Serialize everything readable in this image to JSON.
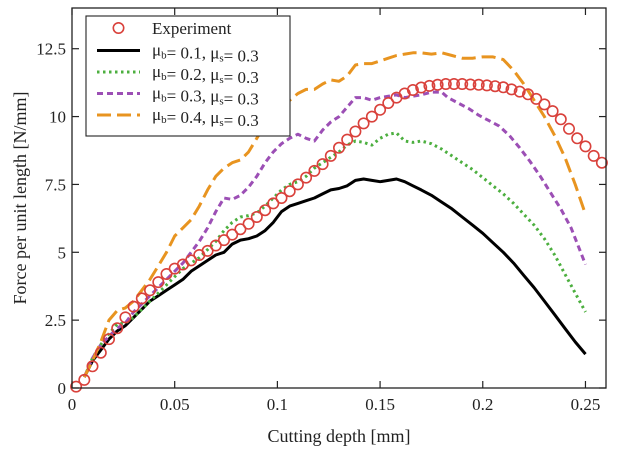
{
  "chart_data": {
    "type": "line",
    "xlabel": "Cutting depth [mm]",
    "ylabel": "Force per unit length [N/mm]",
    "xlim": [
      0,
      0.26
    ],
    "ylim": [
      0,
      14
    ],
    "x_ticks": [
      0,
      0.05,
      0.1,
      0.15,
      0.2,
      0.25
    ],
    "x_tick_labels": [
      "0",
      "0.05",
      "0.1",
      "0.15",
      "0.2",
      "0.25"
    ],
    "y_ticks": [
      0,
      2.5,
      5,
      7.5,
      10,
      12.5
    ],
    "y_tick_labels": [
      "0",
      "2.5",
      "5",
      "7.5",
      "10",
      "12.5"
    ],
    "grid": false,
    "legend_position": "top-left",
    "experiment": {
      "name": "Experiment",
      "color": "#d9413b",
      "marker": "open-circle",
      "points": [
        [
          0.002,
          0.05
        ],
        [
          0.006,
          0.3
        ],
        [
          0.01,
          0.8
        ],
        [
          0.014,
          1.3
        ],
        [
          0.018,
          1.8
        ],
        [
          0.022,
          2.2
        ],
        [
          0.026,
          2.6
        ],
        [
          0.03,
          3.0
        ],
        [
          0.034,
          3.3
        ],
        [
          0.038,
          3.6
        ],
        [
          0.042,
          3.9
        ],
        [
          0.046,
          4.2
        ],
        [
          0.05,
          4.4
        ],
        [
          0.054,
          4.55
        ],
        [
          0.058,
          4.7
        ],
        [
          0.062,
          4.9
        ],
        [
          0.066,
          5.05
        ],
        [
          0.07,
          5.25
        ],
        [
          0.074,
          5.45
        ],
        [
          0.078,
          5.65
        ],
        [
          0.082,
          5.85
        ],
        [
          0.086,
          6.05
        ],
        [
          0.09,
          6.3
        ],
        [
          0.094,
          6.55
        ],
        [
          0.098,
          6.8
        ],
        [
          0.102,
          7.0
        ],
        [
          0.106,
          7.25
        ],
        [
          0.11,
          7.5
        ],
        [
          0.114,
          7.75
        ],
        [
          0.118,
          8.0
        ],
        [
          0.122,
          8.25
        ],
        [
          0.126,
          8.55
        ],
        [
          0.13,
          8.85
        ],
        [
          0.134,
          9.15
        ],
        [
          0.138,
          9.45
        ],
        [
          0.142,
          9.75
        ],
        [
          0.146,
          10.0
        ],
        [
          0.15,
          10.25
        ],
        [
          0.154,
          10.5
        ],
        [
          0.158,
          10.7
        ],
        [
          0.162,
          10.85
        ],
        [
          0.166,
          10.98
        ],
        [
          0.17,
          11.07
        ],
        [
          0.174,
          11.13
        ],
        [
          0.178,
          11.17
        ],
        [
          0.182,
          11.2
        ],
        [
          0.186,
          11.2
        ],
        [
          0.19,
          11.2
        ],
        [
          0.194,
          11.18
        ],
        [
          0.198,
          11.17
        ],
        [
          0.202,
          11.15
        ],
        [
          0.206,
          11.12
        ],
        [
          0.21,
          11.08
        ],
        [
          0.214,
          11.0
        ],
        [
          0.218,
          10.92
        ],
        [
          0.222,
          10.82
        ],
        [
          0.226,
          10.65
        ],
        [
          0.23,
          10.45
        ],
        [
          0.234,
          10.2
        ],
        [
          0.238,
          9.9
        ],
        [
          0.242,
          9.55
        ],
        [
          0.246,
          9.2
        ],
        [
          0.25,
          8.9
        ],
        [
          0.254,
          8.55
        ],
        [
          0.258,
          8.3
        ]
      ]
    },
    "series": [
      {
        "name": "μb= 0.1, μs= 0.3",
        "legend_mu_b": "0.1",
        "legend_mu_s": "0.3",
        "color": "#000000",
        "dash": "solid",
        "points": [
          [
            0.006,
            0.4
          ],
          [
            0.01,
            1.0
          ],
          [
            0.014,
            1.4
          ],
          [
            0.018,
            1.8
          ],
          [
            0.022,
            2.1
          ],
          [
            0.026,
            2.3
          ],
          [
            0.03,
            2.6
          ],
          [
            0.034,
            2.9
          ],
          [
            0.038,
            3.2
          ],
          [
            0.042,
            3.4
          ],
          [
            0.046,
            3.6
          ],
          [
            0.05,
            3.8
          ],
          [
            0.054,
            4.0
          ],
          [
            0.058,
            4.3
          ],
          [
            0.062,
            4.5
          ],
          [
            0.066,
            4.7
          ],
          [
            0.07,
            4.9
          ],
          [
            0.074,
            5.0
          ],
          [
            0.078,
            5.3
          ],
          [
            0.082,
            5.45
          ],
          [
            0.086,
            5.5
          ],
          [
            0.09,
            5.6
          ],
          [
            0.094,
            5.8
          ],
          [
            0.098,
            6.1
          ],
          [
            0.102,
            6.5
          ],
          [
            0.106,
            6.7
          ],
          [
            0.11,
            6.8
          ],
          [
            0.114,
            6.9
          ],
          [
            0.118,
            7.0
          ],
          [
            0.122,
            7.15
          ],
          [
            0.126,
            7.3
          ],
          [
            0.13,
            7.35
          ],
          [
            0.134,
            7.45
          ],
          [
            0.138,
            7.65
          ],
          [
            0.142,
            7.7
          ],
          [
            0.146,
            7.65
          ],
          [
            0.15,
            7.6
          ],
          [
            0.154,
            7.65
          ],
          [
            0.158,
            7.7
          ],
          [
            0.162,
            7.6
          ],
          [
            0.166,
            7.45
          ],
          [
            0.17,
            7.3
          ],
          [
            0.175,
            7.1
          ],
          [
            0.18,
            6.85
          ],
          [
            0.185,
            6.6
          ],
          [
            0.19,
            6.3
          ],
          [
            0.195,
            6.0
          ],
          [
            0.2,
            5.7
          ],
          [
            0.205,
            5.35
          ],
          [
            0.21,
            5.0
          ],
          [
            0.215,
            4.6
          ],
          [
            0.22,
            4.15
          ],
          [
            0.225,
            3.7
          ],
          [
            0.23,
            3.2
          ],
          [
            0.235,
            2.7
          ],
          [
            0.24,
            2.2
          ],
          [
            0.245,
            1.7
          ],
          [
            0.25,
            1.25
          ]
        ]
      },
      {
        "name": "μb= 0.2, μs= 0.3",
        "legend_mu_b": "0.2",
        "legend_mu_s": "0.3",
        "color": "#4caf3f",
        "dash": "dotted",
        "points": [
          [
            0.006,
            0.4
          ],
          [
            0.01,
            1.1
          ],
          [
            0.014,
            1.6
          ],
          [
            0.018,
            2.0
          ],
          [
            0.022,
            2.35
          ],
          [
            0.026,
            2.4
          ],
          [
            0.03,
            2.6
          ],
          [
            0.034,
            2.9
          ],
          [
            0.038,
            3.2
          ],
          [
            0.042,
            3.5
          ],
          [
            0.046,
            3.8
          ],
          [
            0.05,
            4.1
          ],
          [
            0.054,
            4.4
          ],
          [
            0.058,
            4.6
          ],
          [
            0.062,
            4.8
          ],
          [
            0.066,
            5.1
          ],
          [
            0.07,
            5.4
          ],
          [
            0.074,
            5.8
          ],
          [
            0.078,
            6.1
          ],
          [
            0.082,
            6.3
          ],
          [
            0.086,
            6.35
          ],
          [
            0.09,
            6.45
          ],
          [
            0.094,
            6.7
          ],
          [
            0.098,
            7.0
          ],
          [
            0.102,
            7.3
          ],
          [
            0.106,
            7.5
          ],
          [
            0.11,
            7.6
          ],
          [
            0.114,
            7.8
          ],
          [
            0.118,
            8.1
          ],
          [
            0.122,
            8.3
          ],
          [
            0.126,
            8.5
          ],
          [
            0.13,
            8.7
          ],
          [
            0.134,
            8.95
          ],
          [
            0.138,
            9.1
          ],
          [
            0.142,
            9.05
          ],
          [
            0.146,
            8.95
          ],
          [
            0.15,
            9.2
          ],
          [
            0.154,
            9.35
          ],
          [
            0.158,
            9.4
          ],
          [
            0.162,
            9.1
          ],
          [
            0.166,
            9.05
          ],
          [
            0.17,
            9.1
          ],
          [
            0.175,
            9.0
          ],
          [
            0.18,
            8.8
          ],
          [
            0.185,
            8.55
          ],
          [
            0.19,
            8.3
          ],
          [
            0.195,
            8.05
          ],
          [
            0.2,
            7.75
          ],
          [
            0.205,
            7.45
          ],
          [
            0.21,
            7.15
          ],
          [
            0.215,
            6.8
          ],
          [
            0.22,
            6.4
          ],
          [
            0.225,
            6.0
          ],
          [
            0.23,
            5.5
          ],
          [
            0.235,
            4.9
          ],
          [
            0.24,
            4.2
          ],
          [
            0.245,
            3.5
          ],
          [
            0.25,
            2.8
          ]
        ]
      },
      {
        "name": "μb= 0.3, μs= 0.3",
        "legend_mu_b": "0.3",
        "legend_mu_s": "0.3",
        "color": "#9c4fb5",
        "dash": "dashed",
        "points": [
          [
            0.006,
            0.4
          ],
          [
            0.01,
            1.1
          ],
          [
            0.014,
            1.6
          ],
          [
            0.018,
            1.9
          ],
          [
            0.022,
            2.2
          ],
          [
            0.026,
            2.4
          ],
          [
            0.03,
            2.8
          ],
          [
            0.034,
            3.1
          ],
          [
            0.038,
            3.4
          ],
          [
            0.042,
            3.7
          ],
          [
            0.046,
            4.0
          ],
          [
            0.05,
            4.3
          ],
          [
            0.054,
            4.6
          ],
          [
            0.058,
            5.0
          ],
          [
            0.062,
            5.4
          ],
          [
            0.066,
            5.9
          ],
          [
            0.07,
            6.5
          ],
          [
            0.074,
            7.0
          ],
          [
            0.078,
            6.95
          ],
          [
            0.082,
            7.1
          ],
          [
            0.086,
            7.4
          ],
          [
            0.09,
            7.8
          ],
          [
            0.094,
            8.3
          ],
          [
            0.098,
            8.7
          ],
          [
            0.102,
            9.0
          ],
          [
            0.106,
            9.2
          ],
          [
            0.11,
            9.35
          ],
          [
            0.114,
            9.2
          ],
          [
            0.118,
            9.1
          ],
          [
            0.122,
            9.5
          ],
          [
            0.126,
            9.8
          ],
          [
            0.13,
            10.0
          ],
          [
            0.134,
            10.35
          ],
          [
            0.138,
            10.7
          ],
          [
            0.142,
            10.7
          ],
          [
            0.146,
            10.6
          ],
          [
            0.15,
            10.7
          ],
          [
            0.154,
            10.75
          ],
          [
            0.158,
            10.8
          ],
          [
            0.162,
            10.7
          ],
          [
            0.166,
            10.75
          ],
          [
            0.17,
            10.8
          ],
          [
            0.175,
            10.9
          ],
          [
            0.18,
            10.9
          ],
          [
            0.183,
            10.7
          ],
          [
            0.188,
            10.5
          ],
          [
            0.193,
            10.3
          ],
          [
            0.198,
            10.05
          ],
          [
            0.203,
            9.85
          ],
          [
            0.208,
            9.65
          ],
          [
            0.213,
            9.3
          ],
          [
            0.218,
            8.85
          ],
          [
            0.223,
            8.35
          ],
          [
            0.228,
            7.8
          ],
          [
            0.233,
            7.2
          ],
          [
            0.238,
            6.6
          ],
          [
            0.243,
            5.9
          ],
          [
            0.25,
            4.55
          ]
        ]
      },
      {
        "name": "μb= 0.4, μs= 0.3",
        "legend_mu_b": "0.4",
        "legend_mu_s": "0.3",
        "color": "#e89420",
        "dash": "longdash",
        "points": [
          [
            0.006,
            0.4
          ],
          [
            0.01,
            1.0
          ],
          [
            0.014,
            1.7
          ],
          [
            0.018,
            2.5
          ],
          [
            0.022,
            2.85
          ],
          [
            0.026,
            2.95
          ],
          [
            0.03,
            3.2
          ],
          [
            0.034,
            3.6
          ],
          [
            0.038,
            4.0
          ],
          [
            0.042,
            4.5
          ],
          [
            0.046,
            5.0
          ],
          [
            0.05,
            5.6
          ],
          [
            0.054,
            5.9
          ],
          [
            0.058,
            6.2
          ],
          [
            0.062,
            6.7
          ],
          [
            0.066,
            7.3
          ],
          [
            0.07,
            7.8
          ],
          [
            0.074,
            8.1
          ],
          [
            0.078,
            8.3
          ],
          [
            0.082,
            8.4
          ],
          [
            0.086,
            8.7
          ],
          [
            0.09,
            9.2
          ],
          [
            0.094,
            9.7
          ],
          [
            0.098,
            10.0
          ],
          [
            0.102,
            10.3
          ],
          [
            0.106,
            10.6
          ],
          [
            0.11,
            10.85
          ],
          [
            0.114,
            11.0
          ],
          [
            0.118,
            11.0
          ],
          [
            0.122,
            11.2
          ],
          [
            0.126,
            11.35
          ],
          [
            0.13,
            11.3
          ],
          [
            0.134,
            11.5
          ],
          [
            0.138,
            11.9
          ],
          [
            0.142,
            11.95
          ],
          [
            0.146,
            11.95
          ],
          [
            0.15,
            12.05
          ],
          [
            0.154,
            12.15
          ],
          [
            0.158,
            12.25
          ],
          [
            0.162,
            12.3
          ],
          [
            0.166,
            12.35
          ],
          [
            0.17,
            12.35
          ],
          [
            0.175,
            12.3
          ],
          [
            0.18,
            12.35
          ],
          [
            0.185,
            12.25
          ],
          [
            0.19,
            12.15
          ],
          [
            0.195,
            12.15
          ],
          [
            0.2,
            12.2
          ],
          [
            0.205,
            12.2
          ],
          [
            0.21,
            12.1
          ],
          [
            0.215,
            11.7
          ],
          [
            0.22,
            11.2
          ],
          [
            0.225,
            10.6
          ],
          [
            0.23,
            10.0
          ],
          [
            0.235,
            9.3
          ],
          [
            0.24,
            8.5
          ],
          [
            0.245,
            7.5
          ],
          [
            0.25,
            6.4
          ]
        ]
      }
    ]
  }
}
